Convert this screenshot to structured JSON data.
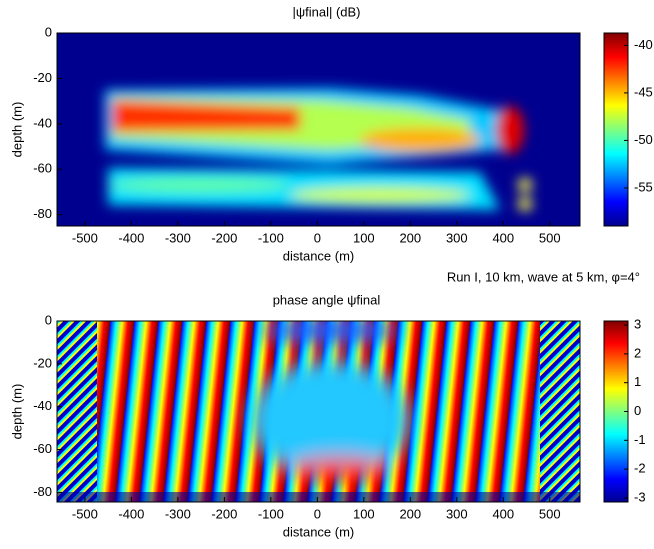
{
  "chart_data": [
    {
      "type": "heatmap",
      "title": "|ψfinal| (dB)",
      "xlabel": "distance (m)",
      "ylabel": "depth (m)",
      "xlim": [
        -560,
        565
      ],
      "xticks": [
        -500,
        -400,
        -300,
        -200,
        -100,
        0,
        100,
        200,
        300,
        400,
        500
      ],
      "ylim": [
        -85,
        0
      ],
      "yticks": [
        0,
        -20,
        -40,
        -60,
        -80
      ],
      "colormap": "jet",
      "clim": [
        -59,
        -38.7
      ],
      "cticks": [
        -55,
        -50,
        -45,
        -40
      ],
      "annotation": "Run I, 10 km, wave at 5 km,  φ=4°"
    },
    {
      "type": "heatmap",
      "title": "phase angle ψfinal",
      "xlabel": "distance (m)",
      "ylabel": "depth (m)",
      "xlim": [
        -560,
        565
      ],
      "xticks": [
        -500,
        -400,
        -300,
        -200,
        -100,
        0,
        100,
        200,
        300,
        400,
        500
      ],
      "ylim": [
        -84.5,
        0
      ],
      "yticks": [
        0,
        -20,
        -40,
        -60,
        -80
      ],
      "colormap": "jet",
      "clim": [
        -3.14,
        3.14
      ],
      "cticks": [
        -3,
        -2,
        -1,
        0,
        1,
        2,
        3
      ]
    }
  ]
}
